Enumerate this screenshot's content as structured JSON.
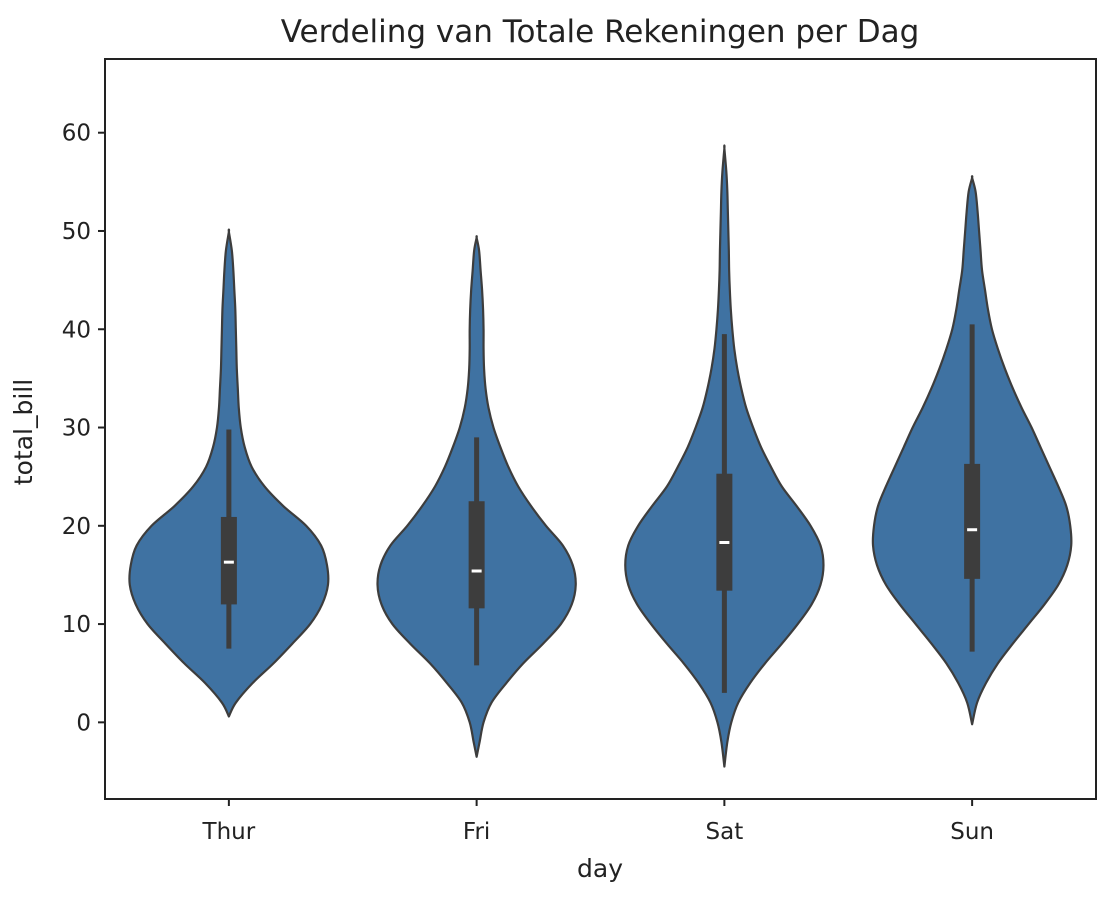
{
  "chart_data": {
    "type": "violin",
    "title": "Verdeling van Totale Rekeningen per Dag",
    "xlabel": "day",
    "ylabel": "total_bill",
    "ylim": [
      -7.8,
      67.5
    ],
    "yticks": [
      0,
      10,
      20,
      30,
      40,
      50,
      60
    ],
    "grid": false,
    "colors": {
      "violin": "#3f72a2",
      "edge": "#3d3d3d",
      "box": "#3d3d3d",
      "median": "#ffffff"
    },
    "categories": [
      "Thur",
      "Fri",
      "Sat",
      "Sun"
    ],
    "violins": [
      {
        "category": "Thur",
        "min": 0.6,
        "max": 49.9,
        "whisker_low": 7.5,
        "q1": 12.0,
        "median": 16.3,
        "q3": 20.9,
        "whisker_high": 29.8,
        "profile": [
          [
            0.6,
            0.0
          ],
          [
            2,
            0.07
          ],
          [
            4,
            0.24
          ],
          [
            6,
            0.45
          ],
          [
            8,
            0.64
          ],
          [
            10,
            0.82
          ],
          [
            12,
            0.94
          ],
          [
            14,
            1.0
          ],
          [
            16,
            0.99
          ],
          [
            18,
            0.93
          ],
          [
            20,
            0.78
          ],
          [
            22,
            0.55
          ],
          [
            24,
            0.36
          ],
          [
            26,
            0.23
          ],
          [
            28,
            0.16
          ],
          [
            30,
            0.12
          ],
          [
            32,
            0.1
          ],
          [
            34,
            0.09
          ],
          [
            36,
            0.08
          ],
          [
            38,
            0.075
          ],
          [
            40,
            0.07
          ],
          [
            42,
            0.065
          ],
          [
            44,
            0.055
          ],
          [
            46,
            0.045
          ],
          [
            48,
            0.03
          ],
          [
            49.9,
            0.0
          ]
        ]
      },
      {
        "category": "Fri",
        "min": -3.5,
        "max": 49.3,
        "whisker_low": 5.8,
        "q1": 11.6,
        "median": 15.4,
        "q3": 22.5,
        "whisker_high": 29.0,
        "profile": [
          [
            -3.5,
            0.0
          ],
          [
            -2,
            0.03
          ],
          [
            0,
            0.07
          ],
          [
            2,
            0.15
          ],
          [
            4,
            0.3
          ],
          [
            6,
            0.47
          ],
          [
            8,
            0.67
          ],
          [
            10,
            0.85
          ],
          [
            12,
            0.96
          ],
          [
            14,
            1.0
          ],
          [
            16,
            0.97
          ],
          [
            18,
            0.87
          ],
          [
            20,
            0.7
          ],
          [
            22,
            0.55
          ],
          [
            24,
            0.42
          ],
          [
            26,
            0.32
          ],
          [
            28,
            0.24
          ],
          [
            30,
            0.17
          ],
          [
            32,
            0.12
          ],
          [
            34,
            0.09
          ],
          [
            36,
            0.075
          ],
          [
            38,
            0.07
          ],
          [
            40,
            0.07
          ],
          [
            42,
            0.065
          ],
          [
            44,
            0.055
          ],
          [
            46,
            0.04
          ],
          [
            48,
            0.025
          ],
          [
            49.3,
            0.0
          ]
        ]
      },
      {
        "category": "Sat",
        "min": -4.5,
        "max": 58.4,
        "whisker_low": 3.0,
        "q1": 13.4,
        "median": 18.3,
        "q3": 25.3,
        "whisker_high": 39.5,
        "profile": [
          [
            -4.5,
            0.0
          ],
          [
            -2,
            0.03
          ],
          [
            0,
            0.07
          ],
          [
            2,
            0.14
          ],
          [
            4,
            0.26
          ],
          [
            6,
            0.41
          ],
          [
            8,
            0.58
          ],
          [
            10,
            0.74
          ],
          [
            12,
            0.88
          ],
          [
            14,
            0.97
          ],
          [
            16,
            1.0
          ],
          [
            18,
            0.97
          ],
          [
            20,
            0.87
          ],
          [
            22,
            0.73
          ],
          [
            24,
            0.58
          ],
          [
            26,
            0.47
          ],
          [
            28,
            0.37
          ],
          [
            30,
            0.29
          ],
          [
            32,
            0.22
          ],
          [
            34,
            0.17
          ],
          [
            36,
            0.13
          ],
          [
            38,
            0.1
          ],
          [
            40,
            0.08
          ],
          [
            42,
            0.065
          ],
          [
            44,
            0.055
          ],
          [
            46,
            0.048
          ],
          [
            48,
            0.045
          ],
          [
            50,
            0.04
          ],
          [
            52,
            0.035
          ],
          [
            54,
            0.03
          ],
          [
            56,
            0.02
          ],
          [
            58.4,
            0.0
          ]
        ]
      },
      {
        "category": "Sun",
        "min": -0.2,
        "max": 55.4,
        "whisker_low": 7.2,
        "q1": 14.6,
        "median": 19.6,
        "q3": 26.3,
        "whisker_high": 40.5,
        "profile": [
          [
            -0.2,
            0.0
          ],
          [
            2,
            0.05
          ],
          [
            4,
            0.14
          ],
          [
            6,
            0.26
          ],
          [
            8,
            0.41
          ],
          [
            10,
            0.57
          ],
          [
            12,
            0.73
          ],
          [
            14,
            0.87
          ],
          [
            16,
            0.96
          ],
          [
            18,
            1.0
          ],
          [
            20,
            0.99
          ],
          [
            22,
            0.95
          ],
          [
            24,
            0.87
          ],
          [
            26,
            0.78
          ],
          [
            28,
            0.69
          ],
          [
            30,
            0.6
          ],
          [
            32,
            0.5
          ],
          [
            34,
            0.41
          ],
          [
            36,
            0.33
          ],
          [
            38,
            0.26
          ],
          [
            40,
            0.2
          ],
          [
            42,
            0.16
          ],
          [
            44,
            0.13
          ],
          [
            46,
            0.1
          ],
          [
            48,
            0.085
          ],
          [
            50,
            0.07
          ],
          [
            52,
            0.055
          ],
          [
            54,
            0.035
          ],
          [
            55.4,
            0.0
          ]
        ]
      }
    ]
  }
}
